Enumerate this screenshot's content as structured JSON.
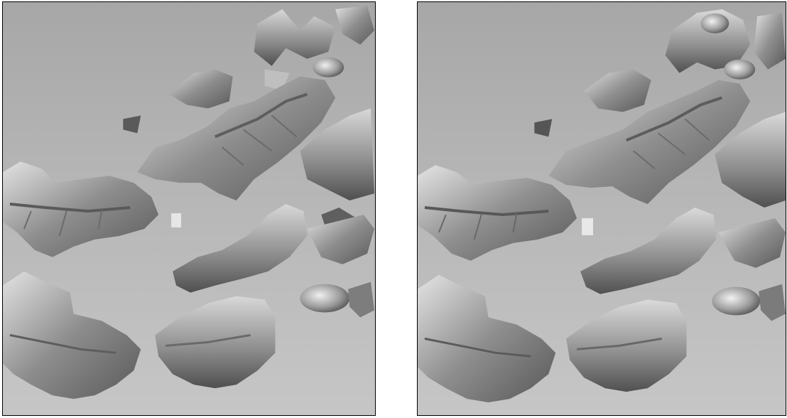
{
  "figure": {
    "panels": [
      {
        "id": "left",
        "content": "grayscale-shaded-3d-leaf-surface-reconstruction"
      },
      {
        "id": "right",
        "content": "grayscale-shaded-3d-leaf-surface-reconstruction"
      }
    ]
  },
  "colors": {
    "background": "#ffffff",
    "panel_border": "#000000",
    "backdrop_top": "#a7a7a7",
    "backdrop_bottom": "#c6c6c6",
    "surface_light": "#e6e6e6",
    "surface_mid": "#9a9a9a",
    "surface_dark": "#4d4d4d"
  }
}
